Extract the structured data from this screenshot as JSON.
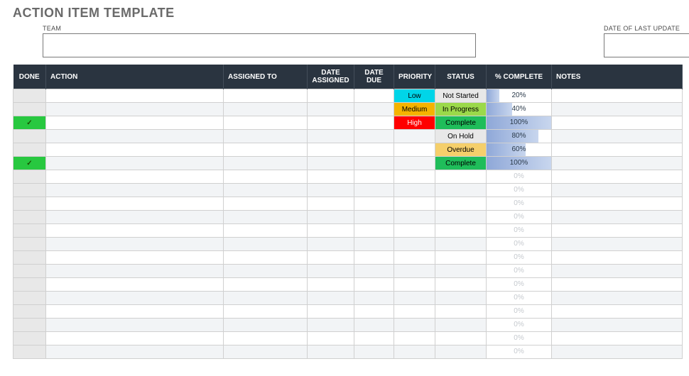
{
  "title": "ACTION ITEM TEMPLATE",
  "fields": {
    "team_label": "TEAM",
    "team_value": "",
    "date_label": "DATE OF LAST UPDATE",
    "date_value": ""
  },
  "columns": {
    "done": "DONE",
    "action": "ACTION",
    "assigned_to": "ASSIGNED TO",
    "date_assigned": "DATE ASSIGNED",
    "date_due": "DATE DUE",
    "priority": "PRIORITY",
    "status": "STATUS",
    "complete": "% COMPLETE",
    "notes": "NOTES"
  },
  "priority_colors": {
    "Low": "#00d5e8",
    "Medium": "#f5b300",
    "High": "#ff0000"
  },
  "status_colors": {
    "Not Started": "#e8e8e8",
    "In Progress": "#9bd94a",
    "Complete": "#1fbd5a",
    "On Hold": "#e8e8e8",
    "Overdue": "#f5cf6b"
  },
  "rows": [
    {
      "done": false,
      "action": "",
      "assigned_to": "",
      "date_assigned": "",
      "date_due": "",
      "priority": "Low",
      "status": "Not Started",
      "complete": 20,
      "notes": ""
    },
    {
      "done": false,
      "action": "",
      "assigned_to": "",
      "date_assigned": "",
      "date_due": "",
      "priority": "Medium",
      "status": "In Progress",
      "complete": 40,
      "notes": ""
    },
    {
      "done": true,
      "action": "",
      "assigned_to": "",
      "date_assigned": "",
      "date_due": "",
      "priority": "High",
      "status": "Complete",
      "complete": 100,
      "notes": ""
    },
    {
      "done": false,
      "action": "",
      "assigned_to": "",
      "date_assigned": "",
      "date_due": "",
      "priority": "",
      "status": "On Hold",
      "complete": 80,
      "notes": ""
    },
    {
      "done": false,
      "action": "",
      "assigned_to": "",
      "date_assigned": "",
      "date_due": "",
      "priority": "",
      "status": "Overdue",
      "complete": 60,
      "notes": ""
    },
    {
      "done": true,
      "action": "",
      "assigned_to": "",
      "date_assigned": "",
      "date_due": "",
      "priority": "",
      "status": "Complete",
      "complete": 100,
      "notes": ""
    },
    {
      "done": false,
      "action": "",
      "assigned_to": "",
      "date_assigned": "",
      "date_due": "",
      "priority": "",
      "status": "",
      "complete": 0,
      "notes": ""
    },
    {
      "done": false,
      "action": "",
      "assigned_to": "",
      "date_assigned": "",
      "date_due": "",
      "priority": "",
      "status": "",
      "complete": 0,
      "notes": ""
    },
    {
      "done": false,
      "action": "",
      "assigned_to": "",
      "date_assigned": "",
      "date_due": "",
      "priority": "",
      "status": "",
      "complete": 0,
      "notes": ""
    },
    {
      "done": false,
      "action": "",
      "assigned_to": "",
      "date_assigned": "",
      "date_due": "",
      "priority": "",
      "status": "",
      "complete": 0,
      "notes": ""
    },
    {
      "done": false,
      "action": "",
      "assigned_to": "",
      "date_assigned": "",
      "date_due": "",
      "priority": "",
      "status": "",
      "complete": 0,
      "notes": ""
    },
    {
      "done": false,
      "action": "",
      "assigned_to": "",
      "date_assigned": "",
      "date_due": "",
      "priority": "",
      "status": "",
      "complete": 0,
      "notes": ""
    },
    {
      "done": false,
      "action": "",
      "assigned_to": "",
      "date_assigned": "",
      "date_due": "",
      "priority": "",
      "status": "",
      "complete": 0,
      "notes": ""
    },
    {
      "done": false,
      "action": "",
      "assigned_to": "",
      "date_assigned": "",
      "date_due": "",
      "priority": "",
      "status": "",
      "complete": 0,
      "notes": ""
    },
    {
      "done": false,
      "action": "",
      "assigned_to": "",
      "date_assigned": "",
      "date_due": "",
      "priority": "",
      "status": "",
      "complete": 0,
      "notes": ""
    },
    {
      "done": false,
      "action": "",
      "assigned_to": "",
      "date_assigned": "",
      "date_due": "",
      "priority": "",
      "status": "",
      "complete": 0,
      "notes": ""
    },
    {
      "done": false,
      "action": "",
      "assigned_to": "",
      "date_assigned": "",
      "date_due": "",
      "priority": "",
      "status": "",
      "complete": 0,
      "notes": ""
    },
    {
      "done": false,
      "action": "",
      "assigned_to": "",
      "date_assigned": "",
      "date_due": "",
      "priority": "",
      "status": "",
      "complete": 0,
      "notes": ""
    },
    {
      "done": false,
      "action": "",
      "assigned_to": "",
      "date_assigned": "",
      "date_due": "",
      "priority": "",
      "status": "",
      "complete": 0,
      "notes": ""
    },
    {
      "done": false,
      "action": "",
      "assigned_to": "",
      "date_assigned": "",
      "date_due": "",
      "priority": "",
      "status": "",
      "complete": 0,
      "notes": ""
    }
  ]
}
